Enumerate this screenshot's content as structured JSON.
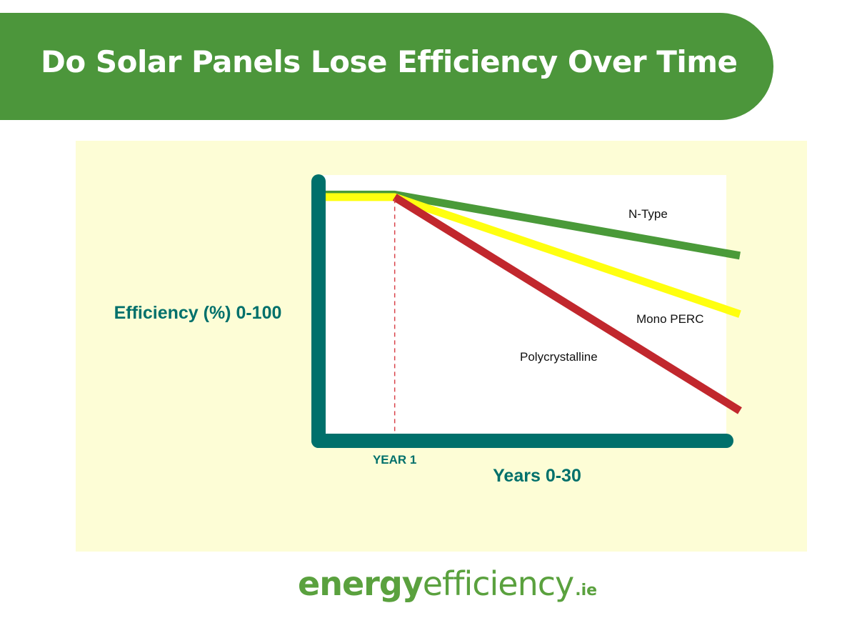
{
  "header": {
    "title": "Do Solar Panels Lose Efficiency Over Time"
  },
  "colors": {
    "banner": "#4c963b",
    "panel": "#fdfdd6",
    "axis": "#00706b",
    "n_type": "#4a9a39",
    "mono_perc": "#ffff0f",
    "polycrystalline": "#c1272d",
    "marker": "#d9434a"
  },
  "chart_data": {
    "type": "line",
    "title": "",
    "xlabel": "Years 0-30",
    "ylabel": "Efficiency (%) 0-100",
    "xlim": [
      0,
      30
    ],
    "ylim": [
      0,
      100
    ],
    "grid": false,
    "marker_line": {
      "x": 5,
      "label": "YEAR 1"
    },
    "series": [
      {
        "name": "N-Type",
        "label": "N-Type",
        "color": "#4a9a39",
        "points": [
          [
            0,
            94
          ],
          [
            5,
            94
          ],
          [
            30,
            70
          ]
        ]
      },
      {
        "name": "Mono PERC",
        "label": "Mono PERC",
        "color": "#ffff0f",
        "points": [
          [
            0,
            93
          ],
          [
            5,
            93
          ],
          [
            30,
            47
          ]
        ]
      },
      {
        "name": "Polycrystalline",
        "label": "Polycrystalline",
        "color": "#c1272d",
        "points": [
          [
            5,
            93
          ],
          [
            30,
            9
          ]
        ]
      }
    ]
  },
  "brand": {
    "bold_part": "energy",
    "light_part": "efficiency",
    "tld": ".ie"
  }
}
